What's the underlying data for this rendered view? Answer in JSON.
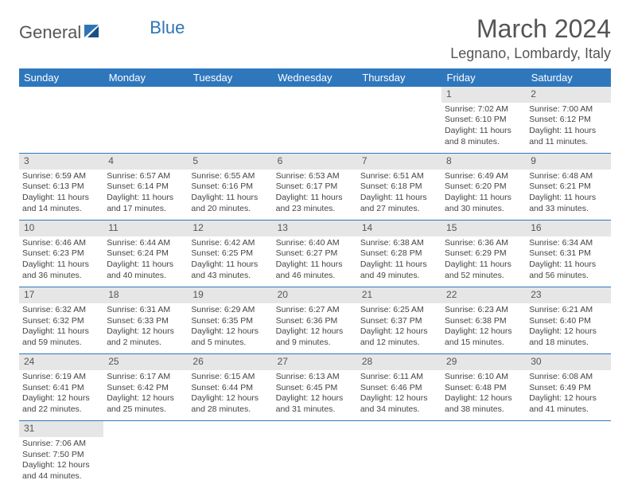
{
  "brand": {
    "part1": "General",
    "part2": "Blue"
  },
  "header": {
    "title": "March 2024",
    "location": "Legnano, Lombardy, Italy"
  },
  "colors": {
    "header_bg": "#2f77bd",
    "header_text": "#ffffff",
    "daynum_bg": "#e6e6e6",
    "border": "#2f77bd"
  },
  "weekdays": [
    "Sunday",
    "Monday",
    "Tuesday",
    "Wednesday",
    "Thursday",
    "Friday",
    "Saturday"
  ],
  "weeks": [
    {
      "nums": [
        "",
        "",
        "",
        "",
        "",
        "1",
        "2"
      ],
      "cells": [
        null,
        null,
        null,
        null,
        null,
        {
          "sunrise": "Sunrise: 7:02 AM",
          "sunset": "Sunset: 6:10 PM",
          "day1": "Daylight: 11 hours",
          "day2": "and 8 minutes."
        },
        {
          "sunrise": "Sunrise: 7:00 AM",
          "sunset": "Sunset: 6:12 PM",
          "day1": "Daylight: 11 hours",
          "day2": "and 11 minutes."
        }
      ]
    },
    {
      "nums": [
        "3",
        "4",
        "5",
        "6",
        "7",
        "8",
        "9"
      ],
      "cells": [
        {
          "sunrise": "Sunrise: 6:59 AM",
          "sunset": "Sunset: 6:13 PM",
          "day1": "Daylight: 11 hours",
          "day2": "and 14 minutes."
        },
        {
          "sunrise": "Sunrise: 6:57 AM",
          "sunset": "Sunset: 6:14 PM",
          "day1": "Daylight: 11 hours",
          "day2": "and 17 minutes."
        },
        {
          "sunrise": "Sunrise: 6:55 AM",
          "sunset": "Sunset: 6:16 PM",
          "day1": "Daylight: 11 hours",
          "day2": "and 20 minutes."
        },
        {
          "sunrise": "Sunrise: 6:53 AM",
          "sunset": "Sunset: 6:17 PM",
          "day1": "Daylight: 11 hours",
          "day2": "and 23 minutes."
        },
        {
          "sunrise": "Sunrise: 6:51 AM",
          "sunset": "Sunset: 6:18 PM",
          "day1": "Daylight: 11 hours",
          "day2": "and 27 minutes."
        },
        {
          "sunrise": "Sunrise: 6:49 AM",
          "sunset": "Sunset: 6:20 PM",
          "day1": "Daylight: 11 hours",
          "day2": "and 30 minutes."
        },
        {
          "sunrise": "Sunrise: 6:48 AM",
          "sunset": "Sunset: 6:21 PM",
          "day1": "Daylight: 11 hours",
          "day2": "and 33 minutes."
        }
      ]
    },
    {
      "nums": [
        "10",
        "11",
        "12",
        "13",
        "14",
        "15",
        "16"
      ],
      "cells": [
        {
          "sunrise": "Sunrise: 6:46 AM",
          "sunset": "Sunset: 6:23 PM",
          "day1": "Daylight: 11 hours",
          "day2": "and 36 minutes."
        },
        {
          "sunrise": "Sunrise: 6:44 AM",
          "sunset": "Sunset: 6:24 PM",
          "day1": "Daylight: 11 hours",
          "day2": "and 40 minutes."
        },
        {
          "sunrise": "Sunrise: 6:42 AM",
          "sunset": "Sunset: 6:25 PM",
          "day1": "Daylight: 11 hours",
          "day2": "and 43 minutes."
        },
        {
          "sunrise": "Sunrise: 6:40 AM",
          "sunset": "Sunset: 6:27 PM",
          "day1": "Daylight: 11 hours",
          "day2": "and 46 minutes."
        },
        {
          "sunrise": "Sunrise: 6:38 AM",
          "sunset": "Sunset: 6:28 PM",
          "day1": "Daylight: 11 hours",
          "day2": "and 49 minutes."
        },
        {
          "sunrise": "Sunrise: 6:36 AM",
          "sunset": "Sunset: 6:29 PM",
          "day1": "Daylight: 11 hours",
          "day2": "and 52 minutes."
        },
        {
          "sunrise": "Sunrise: 6:34 AM",
          "sunset": "Sunset: 6:31 PM",
          "day1": "Daylight: 11 hours",
          "day2": "and 56 minutes."
        }
      ]
    },
    {
      "nums": [
        "17",
        "18",
        "19",
        "20",
        "21",
        "22",
        "23"
      ],
      "cells": [
        {
          "sunrise": "Sunrise: 6:32 AM",
          "sunset": "Sunset: 6:32 PM",
          "day1": "Daylight: 11 hours",
          "day2": "and 59 minutes."
        },
        {
          "sunrise": "Sunrise: 6:31 AM",
          "sunset": "Sunset: 6:33 PM",
          "day1": "Daylight: 12 hours",
          "day2": "and 2 minutes."
        },
        {
          "sunrise": "Sunrise: 6:29 AM",
          "sunset": "Sunset: 6:35 PM",
          "day1": "Daylight: 12 hours",
          "day2": "and 5 minutes."
        },
        {
          "sunrise": "Sunrise: 6:27 AM",
          "sunset": "Sunset: 6:36 PM",
          "day1": "Daylight: 12 hours",
          "day2": "and 9 minutes."
        },
        {
          "sunrise": "Sunrise: 6:25 AM",
          "sunset": "Sunset: 6:37 PM",
          "day1": "Daylight: 12 hours",
          "day2": "and 12 minutes."
        },
        {
          "sunrise": "Sunrise: 6:23 AM",
          "sunset": "Sunset: 6:38 PM",
          "day1": "Daylight: 12 hours",
          "day2": "and 15 minutes."
        },
        {
          "sunrise": "Sunrise: 6:21 AM",
          "sunset": "Sunset: 6:40 PM",
          "day1": "Daylight: 12 hours",
          "day2": "and 18 minutes."
        }
      ]
    },
    {
      "nums": [
        "24",
        "25",
        "26",
        "27",
        "28",
        "29",
        "30"
      ],
      "cells": [
        {
          "sunrise": "Sunrise: 6:19 AM",
          "sunset": "Sunset: 6:41 PM",
          "day1": "Daylight: 12 hours",
          "day2": "and 22 minutes."
        },
        {
          "sunrise": "Sunrise: 6:17 AM",
          "sunset": "Sunset: 6:42 PM",
          "day1": "Daylight: 12 hours",
          "day2": "and 25 minutes."
        },
        {
          "sunrise": "Sunrise: 6:15 AM",
          "sunset": "Sunset: 6:44 PM",
          "day1": "Daylight: 12 hours",
          "day2": "and 28 minutes."
        },
        {
          "sunrise": "Sunrise: 6:13 AM",
          "sunset": "Sunset: 6:45 PM",
          "day1": "Daylight: 12 hours",
          "day2": "and 31 minutes."
        },
        {
          "sunrise": "Sunrise: 6:11 AM",
          "sunset": "Sunset: 6:46 PM",
          "day1": "Daylight: 12 hours",
          "day2": "and 34 minutes."
        },
        {
          "sunrise": "Sunrise: 6:10 AM",
          "sunset": "Sunset: 6:48 PM",
          "day1": "Daylight: 12 hours",
          "day2": "and 38 minutes."
        },
        {
          "sunrise": "Sunrise: 6:08 AM",
          "sunset": "Sunset: 6:49 PM",
          "day1": "Daylight: 12 hours",
          "day2": "and 41 minutes."
        }
      ]
    },
    {
      "nums": [
        "31",
        "",
        "",
        "",
        "",
        "",
        ""
      ],
      "cells": [
        {
          "sunrise": "Sunrise: 7:06 AM",
          "sunset": "Sunset: 7:50 PM",
          "day1": "Daylight: 12 hours",
          "day2": "and 44 minutes."
        },
        null,
        null,
        null,
        null,
        null,
        null
      ]
    }
  ]
}
